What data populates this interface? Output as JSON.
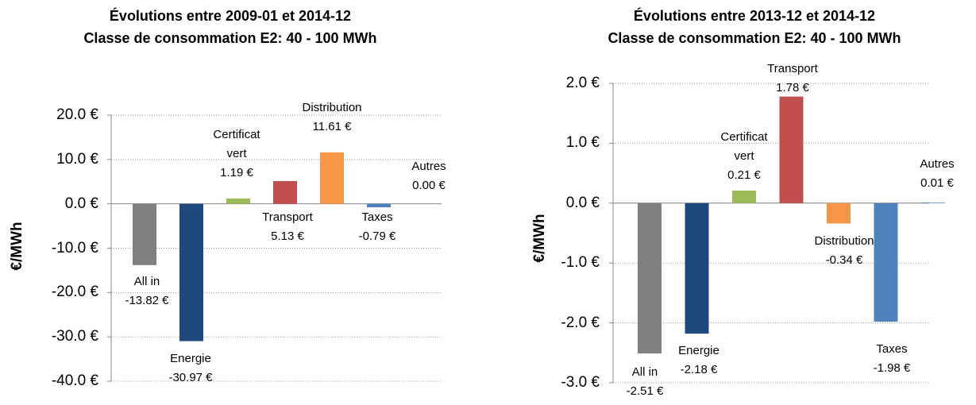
{
  "chart_data": [
    {
      "type": "bar",
      "title": [
        "Évolutions entre 2009-01 et 2014-12",
        "Classe de consommation E2: 40 - 100 MWh"
      ],
      "y_label": "€/MWh",
      "categories": [
        "All in",
        "Energie",
        "Certificat vert",
        "Transport",
        "Distribution",
        "Taxes",
        "Autres"
      ],
      "values": [
        -13.82,
        -30.97,
        1.19,
        5.13,
        11.61,
        -0.79,
        0.0
      ],
      "value_labels": [
        "-13.82 €",
        "-30.97 €",
        "1.19 €",
        "5.13 €",
        "11.61 €",
        "-0.79 €",
        "0.00 €"
      ],
      "colors": [
        "#808080",
        "#1f497d",
        "#9bbb59",
        "#c0504d",
        "#f79646",
        "#4f81bd",
        "#4f81bd"
      ],
      "ylim": [
        -40,
        20
      ],
      "yticks": [
        {
          "value": 20,
          "label": "20.0 €"
        },
        {
          "value": 10,
          "label": "10.0 €"
        },
        {
          "value": 0,
          "label": "0.0 €"
        },
        {
          "value": -10,
          "label": "-10.0 €"
        },
        {
          "value": -20,
          "label": "-20.0 €"
        },
        {
          "value": -30,
          "label": "-30.0 €"
        },
        {
          "value": -40,
          "label": "-40.0 €"
        }
      ],
      "grid": true
    },
    {
      "type": "bar",
      "title": [
        "Évolutions entre 2013-12 et 2014-12",
        "Classe de consommation E2: 40 - 100 MWh"
      ],
      "y_label": "€/MWh",
      "categories": [
        "All in",
        "Energie",
        "Certificat vert",
        "Transport",
        "Distribution",
        "Taxes",
        "Autres"
      ],
      "values": [
        -2.51,
        -2.18,
        0.21,
        1.78,
        -0.34,
        -1.98,
        0.01
      ],
      "value_labels": [
        "-2.51 €",
        "-2.18 €",
        "0.21 €",
        "1.78 €",
        "-0.34 €",
        "-1.98 €",
        "0.01 €"
      ],
      "colors": [
        "#808080",
        "#1f497d",
        "#9bbb59",
        "#c0504d",
        "#f79646",
        "#4f81bd",
        "#4f81bd"
      ],
      "ylim": [
        -3,
        2
      ],
      "yticks": [
        {
          "value": 2,
          "label": "2.0 €"
        },
        {
          "value": 1,
          "label": "1.0 €"
        },
        {
          "value": 0,
          "label": "0.0 €"
        },
        {
          "value": -1,
          "label": "-1.0 €"
        },
        {
          "value": -2,
          "label": "-2.0 €"
        },
        {
          "value": -3,
          "label": "-3.0 €"
        }
      ],
      "grid": true
    }
  ]
}
